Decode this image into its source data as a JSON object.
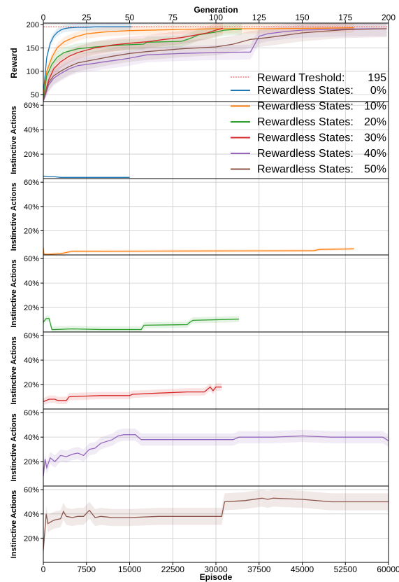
{
  "chart_data": {
    "type": "line",
    "top_axis": {
      "label": "Generation",
      "range": [
        0,
        200
      ],
      "ticks": [
        "0",
        "25",
        "50",
        "75",
        "100",
        "125",
        "150",
        "175",
        "200"
      ]
    },
    "bottom_axis": {
      "label": "Episode",
      "range": [
        0,
        60000
      ],
      "ticks": [
        "0",
        "7500",
        "15000",
        "22500",
        "30000",
        "37500",
        "45000",
        "52500",
        "60000"
      ]
    },
    "reward_panel": {
      "ylabel": "Reward",
      "ylim": [
        35,
        203
      ],
      "yticks": [
        "50",
        "100",
        "150",
        "200"
      ],
      "threshold": 195,
      "series": [
        {
          "key": "s0",
          "x": [
            0,
            2,
            4,
            6,
            8,
            10,
            12,
            15,
            20,
            25,
            30,
            40,
            51
          ],
          "y": [
            50,
            130,
            160,
            175,
            183,
            188,
            191,
            193,
            194,
            194,
            195,
            195,
            195
          ]
        },
        {
          "key": "s10",
          "x": [
            0,
            2,
            5,
            8,
            12,
            18,
            25,
            35,
            50,
            75,
            100,
            130,
            160,
            180
          ],
          "y": [
            45,
            100,
            130,
            150,
            163,
            173,
            180,
            184,
            187,
            189,
            191,
            191,
            192,
            193
          ]
        },
        {
          "key": "s20",
          "x": [
            0,
            2,
            5,
            8,
            12,
            20,
            30,
            45,
            58,
            60,
            80,
            85,
            90,
            100,
            105,
            115
          ],
          "y": [
            40,
            90,
            115,
            130,
            140,
            148,
            152,
            156,
            158,
            162,
            164,
            170,
            178,
            184,
            188,
            190
          ]
        },
        {
          "key": "s30",
          "x": [
            0,
            3,
            6,
            10,
            15,
            20,
            30,
            40,
            50,
            60,
            70,
            80,
            95,
            100,
            102,
            104
          ],
          "y": [
            38,
            80,
            105,
            120,
            132,
            140,
            150,
            156,
            160,
            163,
            168,
            172,
            182,
            188,
            190,
            192
          ]
        },
        {
          "key": "s40",
          "x": [
            0,
            3,
            6,
            10,
            15,
            20,
            30,
            35,
            45,
            50,
            60,
            80,
            100,
            120,
            125,
            130,
            140,
            150,
            170,
            190,
            199
          ],
          "y": [
            35,
            70,
            85,
            95,
            105,
            112,
            117,
            120,
            125,
            128,
            135,
            138,
            140,
            141,
            175,
            180,
            185,
            188,
            190,
            191,
            191
          ]
        },
        {
          "key": "s50",
          "x": [
            0,
            3,
            6,
            10,
            15,
            20,
            30,
            40,
            50,
            60,
            70,
            80,
            90,
            100,
            105,
            110,
            120,
            130,
            140,
            150,
            160,
            175,
            199
          ],
          "y": [
            38,
            75,
            90,
            100,
            110,
            118,
            125,
            132,
            138,
            142,
            145,
            148,
            150,
            152,
            155,
            158,
            168,
            172,
            177,
            182,
            185,
            189,
            191
          ]
        }
      ]
    },
    "legend": {
      "placement": "right",
      "threshold_label": "Reward Treshold:",
      "threshold_value": "195",
      "entries": [
        {
          "label": "Rewardless States:",
          "value": "0%",
          "color": "#1f77b4"
        },
        {
          "label": "Rewardless States:",
          "value": "10%",
          "color": "#ff7f0e"
        },
        {
          "label": "Rewardless States:",
          "value": "20%",
          "color": "#2ca02c"
        },
        {
          "label": "Rewardless States:",
          "value": "30%",
          "color": "#d62728"
        },
        {
          "label": "Rewardless States:",
          "value": "40%",
          "color": "#9467bd"
        },
        {
          "label": "Rewardless States:",
          "value": "50%",
          "color": "#8c564b"
        }
      ]
    },
    "instinctive_panels": {
      "ylabel": "Instinctive Actions",
      "ylim": [
        0,
        63
      ],
      "yticks": [
        "20%",
        "40%",
        "60%"
      ],
      "panels": [
        {
          "key": "s0",
          "color": "#1f77b4",
          "x": [
            0,
            1000,
            2000,
            3000,
            4000,
            5000,
            7000,
            10000,
            15000
          ],
          "y": [
            2,
            1.5,
            1.5,
            1,
            1,
            1,
            1,
            1,
            1
          ],
          "band": 0.5
        },
        {
          "key": "s10",
          "color": "#ff7f0e",
          "x": [
            0,
            100,
            300,
            1000,
            2000,
            3000,
            4000,
            5000,
            10000,
            20000,
            30000,
            40000,
            47000,
            48000,
            54000
          ],
          "y": [
            6,
            1,
            0.5,
            0.5,
            0.8,
            1,
            2,
            3,
            3,
            3.2,
            3.3,
            3.4,
            3.5,
            4.5,
            5
          ],
          "band": 1.2
        },
        {
          "key": "s20",
          "color": "#2ca02c",
          "x": [
            0,
            500,
            1000,
            1500,
            2000,
            5000,
            10000,
            17000,
            17500,
            25000,
            25500,
            26000,
            34000
          ],
          "y": [
            8,
            11,
            11,
            2,
            2,
            2.5,
            2,
            2,
            5.5,
            6,
            8,
            9.5,
            10.5
          ],
          "band": 2.5
        },
        {
          "key": "s30",
          "color": "#d62728",
          "x": [
            0,
            1000,
            2000,
            2500,
            4000,
            4500,
            10000,
            15000,
            15500,
            20000,
            25000,
            28000,
            29000,
            29500,
            30000,
            31000
          ],
          "y": [
            6,
            8,
            8,
            7,
            7,
            10,
            11,
            11,
            12,
            13,
            14,
            14,
            18,
            15,
            18,
            18
          ],
          "band": 3
        },
        {
          "key": "s40",
          "color": "#9467bd",
          "x": [
            0,
            300,
            600,
            1200,
            2000,
            3000,
            4000,
            5000,
            6000,
            7000,
            8000,
            9000,
            10000,
            12000,
            13000,
            14000,
            16000,
            17000,
            20000,
            25000,
            30000,
            33000,
            34000,
            40000,
            45000,
            50000,
            55000,
            59000,
            60000
          ],
          "y": [
            8,
            22,
            15,
            23,
            20,
            25,
            24,
            26,
            27,
            25,
            30,
            31,
            35,
            38,
            41,
            42,
            42,
            38,
            38,
            38,
            38,
            38,
            40,
            40,
            41,
            40,
            40,
            40,
            37
          ],
          "band": 5
        },
        {
          "key": "s50",
          "color": "#8c564b",
          "x": [
            0,
            500,
            800,
            1500,
            2000,
            3000,
            3500,
            4000,
            5000,
            6000,
            7000,
            8000,
            9000,
            10000,
            12000,
            15000,
            20000,
            25000,
            30000,
            31000,
            31500,
            35000,
            38000,
            39000,
            40000,
            45000,
            50000,
            55000,
            60000
          ],
          "y": [
            10,
            40,
            32,
            34,
            35,
            36,
            42,
            38,
            37,
            38,
            38,
            43,
            37,
            38,
            37,
            37,
            38,
            38,
            38,
            38,
            50,
            51,
            53,
            52,
            53,
            52,
            50,
            50,
            50
          ],
          "band": 7
        }
      ]
    },
    "colors": {
      "threshold": "#f08080",
      "grid": "#cccccc",
      "axis": "#000000"
    }
  }
}
